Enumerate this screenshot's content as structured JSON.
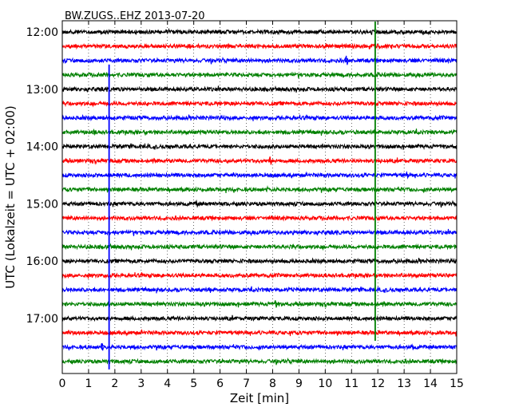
{
  "chart_data": {
    "type": "line",
    "title": "BW.ZUGS..EHZ 2013-07-20",
    "xlabel": "Zeit  [min]",
    "ylabel": "UTC (Lokalzeit = UTC + 02:00)",
    "xlim": [
      0,
      15
    ],
    "x_ticks": [
      0,
      1,
      2,
      3,
      4,
      5,
      6,
      7,
      8,
      9,
      10,
      11,
      12,
      13,
      14,
      15
    ],
    "y_tick_labels": [
      "12:00",
      "13:00",
      "14:00",
      "15:00",
      "16:00",
      "17:00"
    ],
    "grid": "vertical dotted lines at each minute",
    "color_cycle": [
      "#000000",
      "#ff0000",
      "#0000ff",
      "#008000"
    ],
    "traces": [
      {
        "start": "12:00",
        "color": "#000000"
      },
      {
        "start": "12:15",
        "color": "#ff0000"
      },
      {
        "start": "12:30",
        "color": "#0000ff"
      },
      {
        "start": "12:45",
        "color": "#008000"
      },
      {
        "start": "13:00",
        "color": "#000000"
      },
      {
        "start": "13:15",
        "color": "#ff0000"
      },
      {
        "start": "13:30",
        "color": "#0000ff"
      },
      {
        "start": "13:45",
        "color": "#008000"
      },
      {
        "start": "14:00",
        "color": "#000000"
      },
      {
        "start": "14:15",
        "color": "#ff0000"
      },
      {
        "start": "14:30",
        "color": "#0000ff"
      },
      {
        "start": "14:45",
        "color": "#008000"
      },
      {
        "start": "15:00",
        "color": "#000000"
      },
      {
        "start": "15:15",
        "color": "#ff0000"
      },
      {
        "start": "15:30",
        "color": "#0000ff"
      },
      {
        "start": "15:45",
        "color": "#008000"
      },
      {
        "start": "16:00",
        "color": "#000000"
      },
      {
        "start": "16:15",
        "color": "#ff0000"
      },
      {
        "start": "16:30",
        "color": "#0000ff"
      },
      {
        "start": "16:45",
        "color": "#008000"
      },
      {
        "start": "17:00",
        "color": "#000000"
      },
      {
        "start": "17:15",
        "color": "#ff0000"
      },
      {
        "start": "17:30",
        "color": "#0000ff"
      },
      {
        "start": "17:45",
        "color": "#008000"
      }
    ],
    "event_markers": [
      {
        "x_min": 1.78,
        "from_trace": 3,
        "to_trace": 23,
        "color": "#0000ff"
      },
      {
        "x_min": 11.9,
        "from_trace": 0,
        "to_trace": 21,
        "color": "#008000"
      }
    ],
    "spikes": [
      {
        "trace": 2,
        "x_min": 10.8,
        "amplitude": 1.0
      },
      {
        "trace": 7,
        "x_min": 1.2,
        "amplitude": 0.5
      },
      {
        "trace": 9,
        "x_min": 7.9,
        "amplitude": 0.9
      },
      {
        "trace": 10,
        "x_min": 13.1,
        "amplitude": 0.6
      },
      {
        "trace": 12,
        "x_min": 5.1,
        "amplitude": 0.6
      },
      {
        "trace": 19,
        "x_min": 8.1,
        "amplitude": 0.8
      },
      {
        "trace": 22,
        "x_min": 1.5,
        "amplitude": 0.8
      },
      {
        "trace": 22,
        "x_min": 13.3,
        "amplitude": 0.5
      }
    ]
  }
}
